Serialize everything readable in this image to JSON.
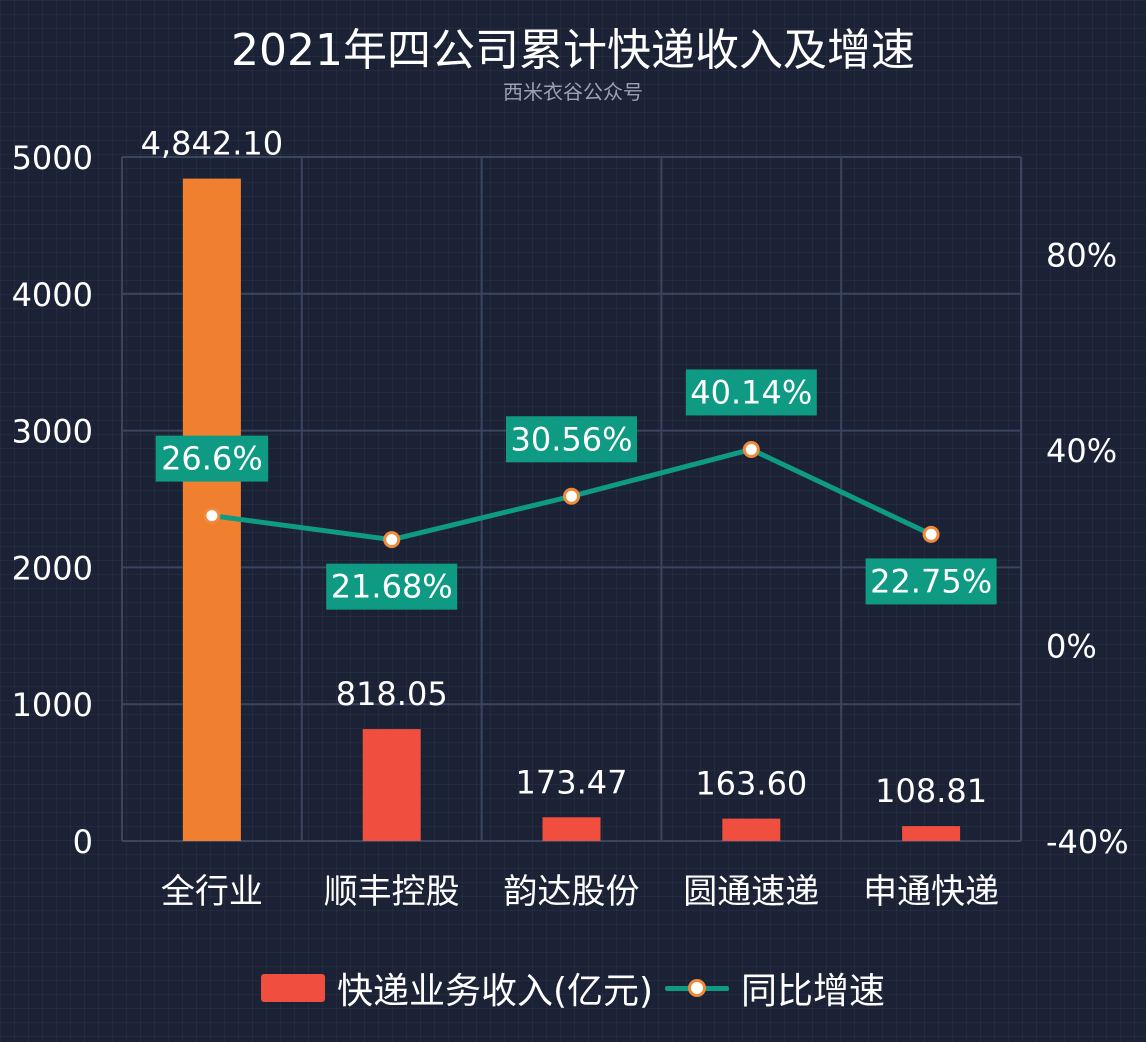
{
  "title": "2021年四公司累计快递收入及增速",
  "subtitle": "西米衣谷公众号",
  "colors": {
    "highlight_bar": "#f0802f",
    "bar": "#f04e3e",
    "line": "#0f9a84",
    "marker_border": "#ef8a3a",
    "label_box": "#0f9a84",
    "grid": "#3a4560"
  },
  "legend": {
    "bar_label": "快递业务收入(亿元)",
    "line_label": "同比增速"
  },
  "chart_data": {
    "type": "bar",
    "categories": [
      "全行业",
      "顺丰控股",
      "韵达股份",
      "圆通速递",
      "申通快递"
    ],
    "series": [
      {
        "name": "快递业务收入(亿元)",
        "type": "bar",
        "values": [
          4842.1,
          818.05,
          173.47,
          163.6,
          108.81
        ],
        "labels": [
          "4,842.10",
          "818.05",
          "173.47",
          "163.60",
          "108.81"
        ]
      },
      {
        "name": "同比增速",
        "type": "line",
        "axis": "right",
        "values": [
          26.6,
          21.68,
          30.56,
          40.14,
          22.75
        ],
        "labels": [
          "26.6%",
          "21.68%",
          "30.56%",
          "40.14%",
          "22.75%"
        ]
      }
    ],
    "y_left": {
      "ylim": [
        0,
        5000
      ],
      "ticks": [
        "0",
        "1000",
        "2000",
        "3000",
        "4000",
        "5000"
      ]
    },
    "y_right": {
      "ylim": [
        -40,
        100
      ],
      "ticks": [
        "-40%",
        "0%",
        "40%",
        "80%"
      ]
    },
    "grid": true,
    "legend_position": "bottom"
  }
}
